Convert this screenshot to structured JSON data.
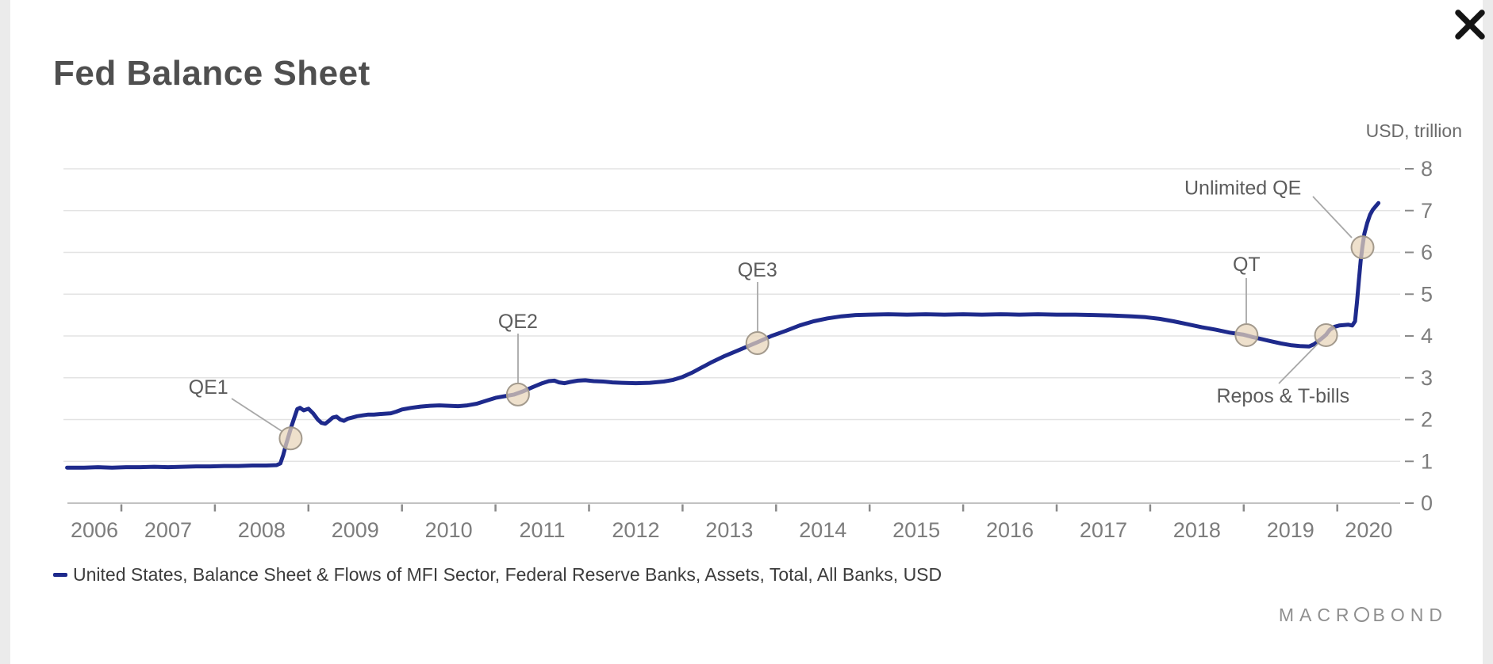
{
  "header": {
    "title": "Fed Balance Sheet"
  },
  "icons": {
    "close": "close-icon",
    "logo_ring": "circle-outline-icon",
    "legend_marker": "line-series-dash"
  },
  "legend": {
    "label": "United States, Balance Sheet & Flows of MFI Sector, Federal Reserve Banks, Assets, Total, All Banks, USD"
  },
  "branding": {
    "logo_pre": "MACR",
    "logo_post": "BOND"
  },
  "colors": {
    "line": "#1e2a8c",
    "grid": "#e3e3e3",
    "axis": "#c2c2c2",
    "tick": "#8a8a8a",
    "axis_text": "#7d7d7d",
    "annotation_text": "#5c5c5c",
    "connector": "#a8a8a8",
    "marker_fill": "#e7d4b9",
    "marker_stroke": "#a39a8d"
  },
  "chart_data": {
    "type": "line",
    "title": "Fed Balance Sheet",
    "unit_label": "USD, trillion",
    "grid": true,
    "legend_position": "bottom-left",
    "x_axis": {
      "tick_years": [
        2006,
        2007,
        2008,
        2009,
        2010,
        2011,
        2012,
        2013,
        2014,
        2015,
        2016,
        2017,
        2018,
        2019,
        2020
      ],
      "range": [
        2006.42,
        2020.67
      ]
    },
    "y_axis": {
      "ticks": [
        0,
        1,
        2,
        3,
        4,
        5,
        6,
        7,
        8
      ],
      "range": [
        0,
        8
      ],
      "unit": "USD, trillion"
    },
    "series": [
      {
        "name": "United States, Balance Sheet & Flows of MFI Sector, Federal Reserve Banks, Assets, Total, All Banks, USD",
        "points": [
          [
            2006.42,
            0.85
          ],
          [
            2006.6,
            0.85
          ],
          [
            2006.75,
            0.86
          ],
          [
            2006.9,
            0.85
          ],
          [
            2007.05,
            0.86
          ],
          [
            2007.2,
            0.86
          ],
          [
            2007.35,
            0.87
          ],
          [
            2007.5,
            0.86
          ],
          [
            2007.65,
            0.87
          ],
          [
            2007.8,
            0.88
          ],
          [
            2007.95,
            0.88
          ],
          [
            2008.1,
            0.89
          ],
          [
            2008.25,
            0.89
          ],
          [
            2008.4,
            0.9
          ],
          [
            2008.55,
            0.9
          ],
          [
            2008.66,
            0.91
          ],
          [
            2008.7,
            0.95
          ],
          [
            2008.73,
            1.15
          ],
          [
            2008.76,
            1.4
          ],
          [
            2008.79,
            1.62
          ],
          [
            2008.82,
            1.85
          ],
          [
            2008.85,
            2.05
          ],
          [
            2008.88,
            2.25
          ],
          [
            2008.91,
            2.28
          ],
          [
            2008.95,
            2.22
          ],
          [
            2009.0,
            2.26
          ],
          [
            2009.05,
            2.15
          ],
          [
            2009.1,
            2.0
          ],
          [
            2009.14,
            1.92
          ],
          [
            2009.18,
            1.9
          ],
          [
            2009.22,
            1.97
          ],
          [
            2009.26,
            2.05
          ],
          [
            2009.3,
            2.07
          ],
          [
            2009.34,
            2.0
          ],
          [
            2009.38,
            1.97
          ],
          [
            2009.42,
            2.02
          ],
          [
            2009.47,
            2.05
          ],
          [
            2009.52,
            2.08
          ],
          [
            2009.58,
            2.1
          ],
          [
            2009.64,
            2.12
          ],
          [
            2009.7,
            2.12
          ],
          [
            2009.76,
            2.13
          ],
          [
            2009.82,
            2.14
          ],
          [
            2009.88,
            2.15
          ],
          [
            2009.94,
            2.19
          ],
          [
            2010.0,
            2.24
          ],
          [
            2010.1,
            2.28
          ],
          [
            2010.2,
            2.31
          ],
          [
            2010.3,
            2.33
          ],
          [
            2010.4,
            2.34
          ],
          [
            2010.5,
            2.33
          ],
          [
            2010.6,
            2.32
          ],
          [
            2010.7,
            2.34
          ],
          [
            2010.8,
            2.38
          ],
          [
            2010.9,
            2.45
          ],
          [
            2011.0,
            2.52
          ],
          [
            2011.1,
            2.56
          ],
          [
            2011.2,
            2.6
          ],
          [
            2011.3,
            2.68
          ],
          [
            2011.4,
            2.78
          ],
          [
            2011.5,
            2.87
          ],
          [
            2011.57,
            2.92
          ],
          [
            2011.63,
            2.93
          ],
          [
            2011.68,
            2.89
          ],
          [
            2011.74,
            2.87
          ],
          [
            2011.8,
            2.9
          ],
          [
            2011.88,
            2.93
          ],
          [
            2011.96,
            2.94
          ],
          [
            2012.05,
            2.92
          ],
          [
            2012.15,
            2.91
          ],
          [
            2012.25,
            2.89
          ],
          [
            2012.35,
            2.88
          ],
          [
            2012.5,
            2.87
          ],
          [
            2012.65,
            2.88
          ],
          [
            2012.8,
            2.91
          ],
          [
            2012.9,
            2.95
          ],
          [
            2013.0,
            3.02
          ],
          [
            2013.1,
            3.12
          ],
          [
            2013.2,
            3.24
          ],
          [
            2013.3,
            3.36
          ],
          [
            2013.45,
            3.52
          ],
          [
            2013.6,
            3.66
          ],
          [
            2013.8,
            3.85
          ],
          [
            2013.95,
            4.0
          ],
          [
            2014.1,
            4.12
          ],
          [
            2014.25,
            4.25
          ],
          [
            2014.4,
            4.35
          ],
          [
            2014.55,
            4.42
          ],
          [
            2014.7,
            4.47
          ],
          [
            2014.85,
            4.5
          ],
          [
            2015.0,
            4.51
          ],
          [
            2015.2,
            4.52
          ],
          [
            2015.4,
            4.51
          ],
          [
            2015.6,
            4.52
          ],
          [
            2015.8,
            4.51
          ],
          [
            2016.0,
            4.52
          ],
          [
            2016.2,
            4.51
          ],
          [
            2016.4,
            4.52
          ],
          [
            2016.6,
            4.51
          ],
          [
            2016.8,
            4.52
          ],
          [
            2017.0,
            4.51
          ],
          [
            2017.2,
            4.51
          ],
          [
            2017.4,
            4.5
          ],
          [
            2017.6,
            4.49
          ],
          [
            2017.8,
            4.47
          ],
          [
            2017.95,
            4.45
          ],
          [
            2018.1,
            4.41
          ],
          [
            2018.25,
            4.35
          ],
          [
            2018.4,
            4.28
          ],
          [
            2018.55,
            4.21
          ],
          [
            2018.7,
            4.15
          ],
          [
            2018.85,
            4.08
          ],
          [
            2019.0,
            4.03
          ],
          [
            2019.1,
            3.97
          ],
          [
            2019.2,
            3.92
          ],
          [
            2019.3,
            3.87
          ],
          [
            2019.4,
            3.82
          ],
          [
            2019.5,
            3.78
          ],
          [
            2019.6,
            3.76
          ],
          [
            2019.7,
            3.75
          ],
          [
            2019.75,
            3.8
          ],
          [
            2019.8,
            3.88
          ],
          [
            2019.85,
            3.97
          ],
          [
            2019.88,
            4.03
          ],
          [
            2019.92,
            4.15
          ],
          [
            2019.97,
            4.22
          ],
          [
            2020.02,
            4.25
          ],
          [
            2020.07,
            4.26
          ],
          [
            2020.12,
            4.27
          ],
          [
            2020.16,
            4.25
          ],
          [
            2020.19,
            4.35
          ],
          [
            2020.21,
            4.8
          ],
          [
            2020.23,
            5.3
          ],
          [
            2020.25,
            5.8
          ],
          [
            2020.27,
            6.15
          ],
          [
            2020.29,
            6.45
          ],
          [
            2020.32,
            6.7
          ],
          [
            2020.35,
            6.9
          ],
          [
            2020.38,
            7.02
          ],
          [
            2020.41,
            7.1
          ],
          [
            2020.44,
            7.18
          ]
        ]
      }
    ],
    "events": [
      {
        "label": "QE1",
        "t": 2008.81,
        "v": 1.55,
        "label_t": 2007.93,
        "label_v": 2.77
      },
      {
        "label": "QE2",
        "t": 2011.24,
        "v": 2.6,
        "label_t": 2011.24,
        "label_v": 4.34
      },
      {
        "label": "QE3",
        "t": 2013.8,
        "v": 3.83,
        "label_t": 2013.8,
        "label_v": 5.57
      },
      {
        "label": "QT",
        "t": 2019.03,
        "v": 4.02,
        "label_t": 2019.03,
        "label_v": 5.71
      },
      {
        "label": "Repos & T-bills",
        "t": 2019.88,
        "v": 4.02,
        "label_t": 2019.42,
        "label_v": 2.56
      },
      {
        "label": "Unlimited QE",
        "t": 2020.27,
        "v": 6.12,
        "label_t": 2018.99,
        "label_v": 7.54
      }
    ]
  }
}
